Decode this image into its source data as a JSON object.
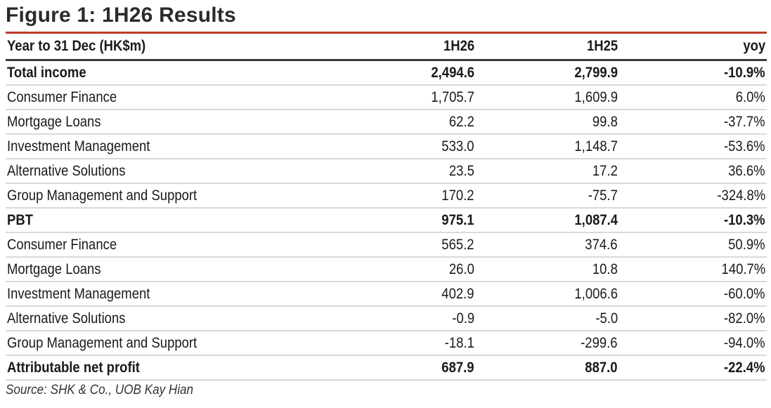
{
  "figure": {
    "title": "Figure 1: 1H26 Results",
    "source": "Source: SHK & Co., UOB Kay Hian"
  },
  "table": {
    "headers": [
      "Year to 31 Dec (HK$m)",
      "1H26",
      "1H25",
      "yoy"
    ],
    "rows": [
      {
        "label": "Total income",
        "h126": "2,494.6",
        "h125": "2,799.9",
        "yoy": "-10.9%",
        "bold": true
      },
      {
        "label": "Consumer Finance",
        "h126": "1,705.7",
        "h125": "1,609.9",
        "yoy": "6.0%",
        "bold": false
      },
      {
        "label": "Mortgage Loans",
        "h126": "62.2",
        "h125": "99.8",
        "yoy": "-37.7%",
        "bold": false
      },
      {
        "label": "Investment Management",
        "h126": "533.0",
        "h125": "1,148.7",
        "yoy": "-53.6%",
        "bold": false
      },
      {
        "label": "Alternative Solutions",
        "h126": "23.5",
        "h125": "17.2",
        "yoy": "36.6%",
        "bold": false
      },
      {
        "label": "Group Management and Support",
        "h126": "170.2",
        "h125": "-75.7",
        "yoy": "-324.8%",
        "bold": false
      },
      {
        "label": "PBT",
        "h126": "975.1",
        "h125": "1,087.4",
        "yoy": "-10.3%",
        "bold": true
      },
      {
        "label": "Consumer Finance",
        "h126": "565.2",
        "h125": "374.6",
        "yoy": "50.9%",
        "bold": false
      },
      {
        "label": "Mortgage Loans",
        "h126": "26.0",
        "h125": "10.8",
        "yoy": "140.7%",
        "bold": false
      },
      {
        "label": "Investment Management",
        "h126": "402.9",
        "h125": "1,006.6",
        "yoy": "-60.0%",
        "bold": false
      },
      {
        "label": "Alternative Solutions",
        "h126": "-0.9",
        "h125": "-5.0",
        "yoy": "-82.0%",
        "bold": false
      },
      {
        "label": "Group Management and Support",
        "h126": "-18.1",
        "h125": "-299.6",
        "yoy": "-94.0%",
        "bold": false
      },
      {
        "label": "Attributable net profit",
        "h126": "687.9",
        "h125": "887.0",
        "yoy": "-22.4%",
        "bold": true
      }
    ]
  },
  "colors": {
    "accent_rule": "#c0392b",
    "header_rule": "#3b3b3b",
    "row_rule": "#d9d9d9",
    "text": "#1a1a1a"
  }
}
